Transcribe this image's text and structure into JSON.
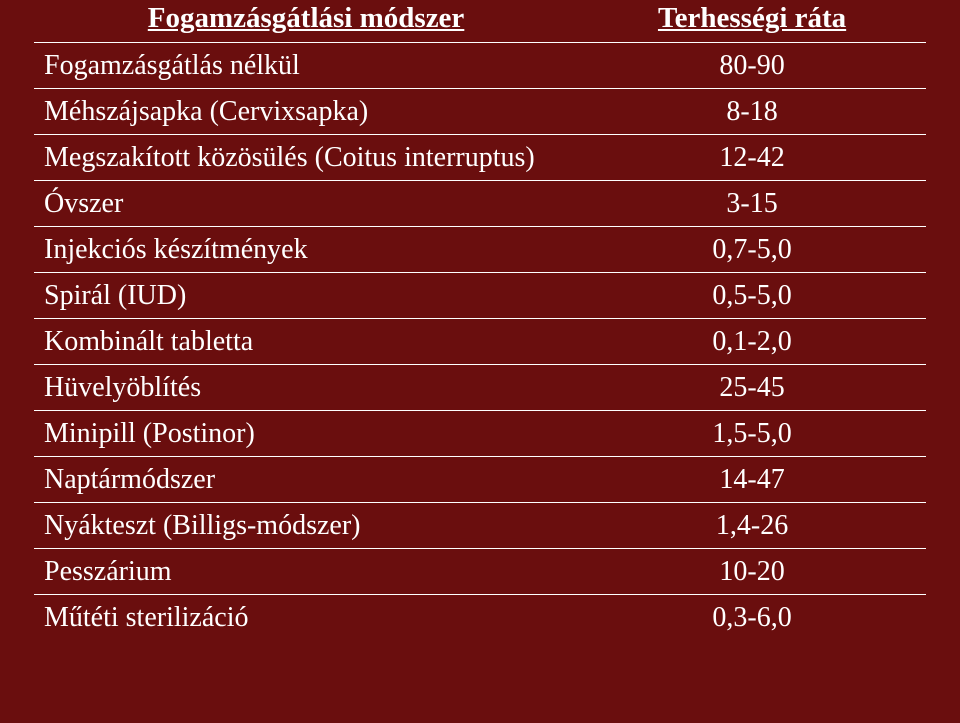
{
  "table": {
    "title_fontsize": 29,
    "cell_fontsize": 28,
    "text_color": "#ffffff",
    "background_color": "#6a0e0e",
    "border_color": "#ffffff",
    "column_widths_pct": [
      61,
      39
    ],
    "header": {
      "method": "Fogamzásgátlási módszer",
      "rate": "Terhességi ráta"
    },
    "rows": [
      {
        "method": "Fogamzásgátlás nélkül",
        "rate": "80-90"
      },
      {
        "method": "Méhszájsapka (Cervixsapka)",
        "rate": "8-18"
      },
      {
        "method": "Megszakított közösülés (Coitus interruptus)",
        "rate": "12-42"
      },
      {
        "method": "Óvszer",
        "rate": "3-15"
      },
      {
        "method": "Injekciós készítmények",
        "rate": "0,7-5,0"
      },
      {
        "method": "Spirál (IUD)",
        "rate": "0,5-5,0"
      },
      {
        "method": "Kombinált tabletta",
        "rate": "0,1-2,0"
      },
      {
        "method": "Hüvelyöblítés",
        "rate": "25-45"
      },
      {
        "method": "Minipill (Postinor)",
        "rate": "1,5-5,0"
      },
      {
        "method": "Naptármódszer",
        "rate": "14-47"
      },
      {
        "method": "Nyákteszt (Billigs-módszer)",
        "rate": "1,4-26"
      },
      {
        "method": "Pesszárium",
        "rate": "10-20"
      },
      {
        "method": "Műtéti sterilizáció",
        "rate": "0,3-6,0"
      }
    ]
  }
}
